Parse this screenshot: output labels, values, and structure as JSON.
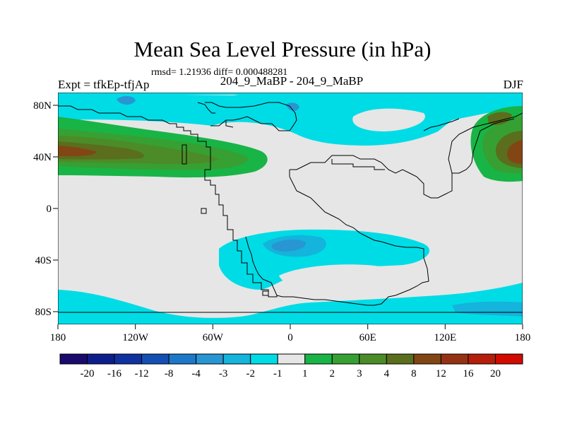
{
  "header": {
    "title": "Mean Sea Level Pressure (in hPa)",
    "stats": "rmsd= 1.21936 diff= 0.000488281",
    "expt": "Expt = tfkEp-tfjAp",
    "comparison": "204_9_MaBP - 204_9_MaBP",
    "season": "DJF"
  },
  "axes": {
    "x_ticks": [
      "180",
      "120W",
      "60W",
      "0",
      "60E",
      "120E",
      "180"
    ],
    "y_ticks": [
      "80N",
      "40N",
      "0",
      "40S",
      "80S"
    ]
  },
  "colorbar": {
    "labels": [
      "-20",
      "-16",
      "-12",
      "-8",
      "-4",
      "-3",
      "-2",
      "-1",
      "1",
      "2",
      "3",
      "4",
      "8",
      "12",
      "16",
      "20"
    ],
    "colors": [
      "#1a0a6e",
      "#0d1e8c",
      "#0f32a0",
      "#1450b4",
      "#1e78c8",
      "#2896d2",
      "#14b4dc",
      "#00dce6",
      "#e6e6e6",
      "#19b446",
      "#37a032",
      "#4b8c28",
      "#5a6e1e",
      "#824614",
      "#963214",
      "#b41e0a",
      "#d20a00"
    ]
  },
  "map": {
    "background_color": "#e6e6e6",
    "coast_color": "#000000"
  }
}
